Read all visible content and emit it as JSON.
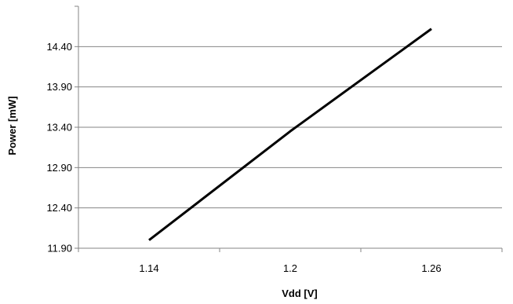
{
  "chart_data": {
    "type": "line",
    "title": "",
    "xlabel": "Vdd [V]",
    "ylabel": "Power [mW]",
    "x_categories": [
      "1.14",
      "1.2",
      "1.26"
    ],
    "series": [
      {
        "values": [
          12.0,
          13.35,
          14.62
        ]
      }
    ],
    "y_ticks": [
      "11.90",
      "12.40",
      "12.90",
      "13.40",
      "13.90",
      "14.40"
    ],
    "ylim": [
      11.9,
      14.9
    ],
    "grid": "horizontal",
    "legend": "none",
    "colors": {
      "line": "#000000",
      "grid": "#868686",
      "axis": "#868686"
    }
  }
}
